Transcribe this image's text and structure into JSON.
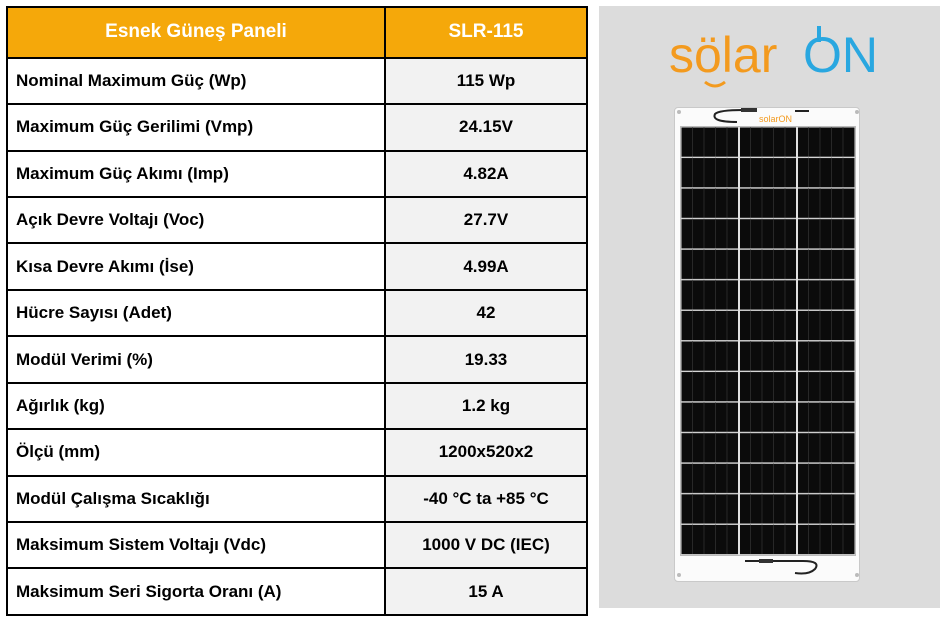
{
  "header": {
    "col1": "Esnek Güneş Paneli",
    "col2": "SLR-115"
  },
  "rows": [
    {
      "label": "Nominal Maximum Güç (Wp)",
      "value": "115 Wp"
    },
    {
      "label": "Maximum Güç Gerilimi (Vmp)",
      "value": "24.15V"
    },
    {
      "label": "Maximum Güç Akımı (Imp)",
      "value": "4.82A"
    },
    {
      "label": "Açık Devre Voltajı (Voc)",
      "value": "27.7V"
    },
    {
      "label": "Kısa Devre Akımı (İse)",
      "value": "4.99A"
    },
    {
      "label": "Hücre Sayısı (Adet)",
      "value": "42"
    },
    {
      "label": "Modül Verimi (%)",
      "value": "19.33"
    },
    {
      "label": "Ağırlık (kg)",
      "value": "1.2 kg"
    },
    {
      "label": "Ölçü (mm)",
      "value": "1200x520x2"
    },
    {
      "label": "Modül Çalışma Sıcaklığı",
      "value": "-40 °C ta +85 °C"
    },
    {
      "label": "Maksimum Sistem Voltajı (Vdc)",
      "value": "1000 V DC (IEC)"
    },
    {
      "label": "Maksimum Seri Sigorta Oranı (A)",
      "value": "15 A"
    }
  ],
  "logo": {
    "part1": "sölar",
    "part2": "ON",
    "panel_mark": "solarON"
  },
  "colors": {
    "header_bg": "#f5a80a",
    "logo_orange": "#f39a1e",
    "logo_blue": "#29a7e0",
    "value_bg": "#f2f2f2",
    "photo_bg": "#dcdcdc"
  }
}
